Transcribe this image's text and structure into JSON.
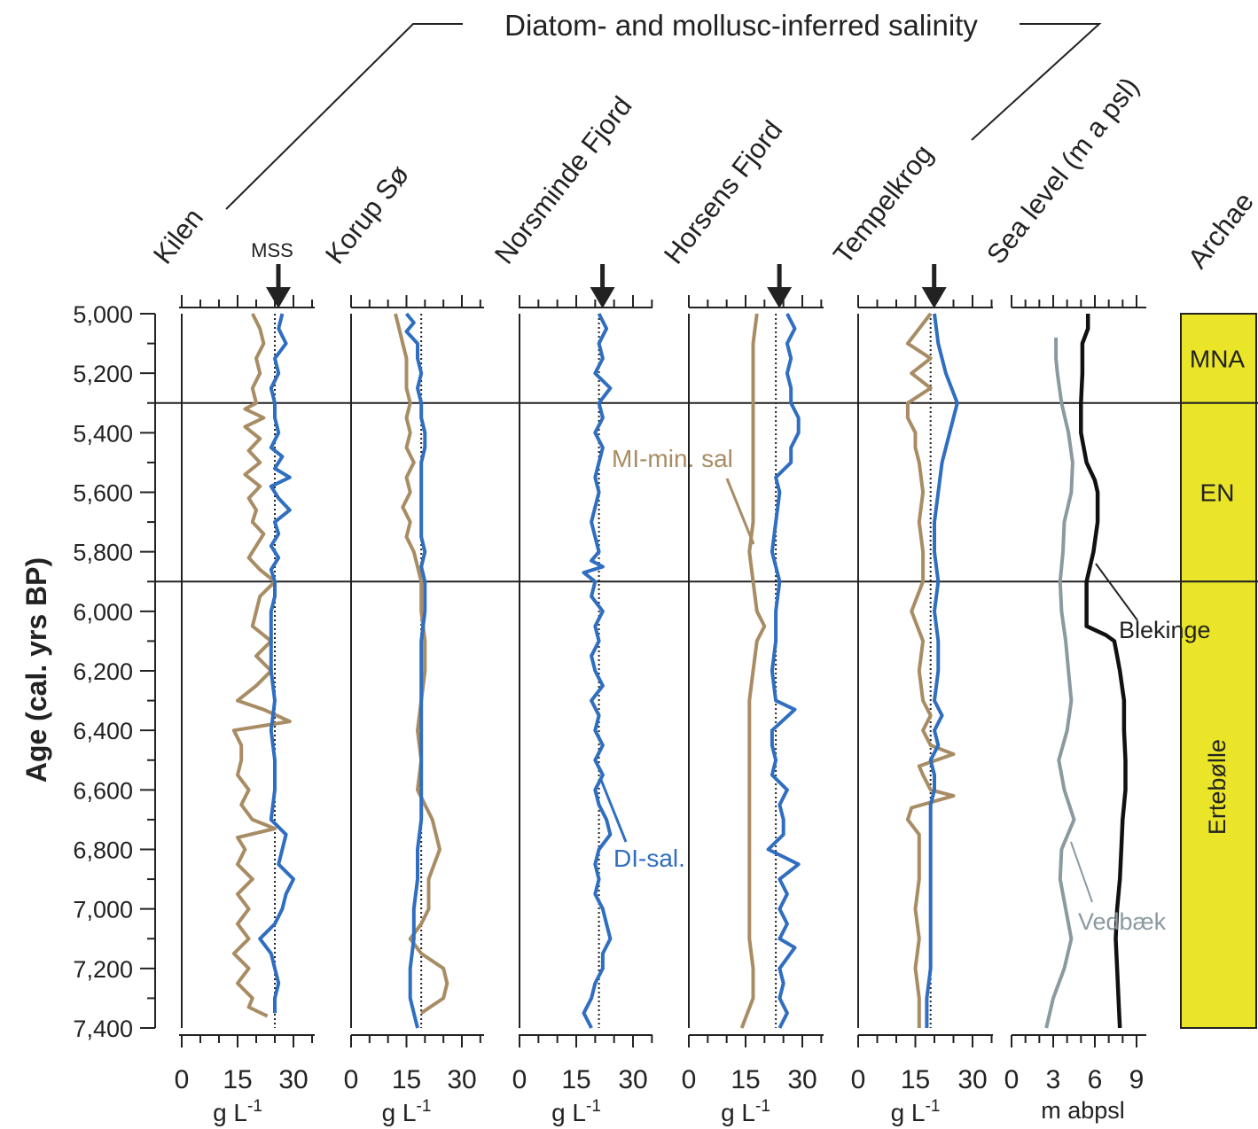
{
  "figure": {
    "header": "Diatom- and mollusc-inferred salinity",
    "y_axis_label": "Age (cal. yrs BP)",
    "y_ticks": [
      "5,000",
      "5,200",
      "5,400",
      "5,600",
      "5,800",
      "6,000",
      "6,200",
      "6,400",
      "6,600",
      "6,800",
      "7,000",
      "7,200",
      "7,400"
    ],
    "mss_label": "MSS",
    "annotation_mi": "MI-min. sal",
    "annotation_di": "DI-sal.",
    "annotation_blekinge": "Blekinge",
    "annotation_vedbaek": "Vedbæk",
    "colors": {
      "mi": "#a88c64",
      "di": "#2f6ec0",
      "blekinge": "#111111",
      "vedbaek": "#8a9aa0",
      "archaeo_fill": "#eae528"
    }
  },
  "chart_data": [
    {
      "type": "line",
      "title": "Kilen",
      "xlabel": "g L-1",
      "xlabel_sup": "-1",
      "xlabel_base": "g L",
      "xticks": [
        "0",
        "15",
        "30"
      ],
      "xlim": [
        0,
        35
      ],
      "ylim": [
        5000,
        7400
      ],
      "mss": 25,
      "series": [
        {
          "key": "mi",
          "x": [
            5000,
            5050,
            5100,
            5150,
            5200,
            5250,
            5300,
            5320,
            5350,
            5380,
            5420,
            5460,
            5500,
            5540,
            5580,
            5620,
            5660,
            5700,
            5740,
            5780,
            5820,
            5860,
            5900,
            5950,
            6000,
            6050,
            6100,
            6150,
            6200,
            6250,
            6300,
            6330,
            6370,
            6400,
            6450,
            6500,
            6550,
            6600,
            6650,
            6700,
            6730,
            6760,
            6800,
            6850,
            6900,
            6950,
            7000,
            7050,
            7100,
            7150,
            7200,
            7250,
            7300,
            7330,
            7360
          ],
          "y": [
            19,
            21,
            22,
            20,
            21,
            19,
            20,
            17,
            22,
            17,
            21,
            18,
            21,
            17,
            21,
            18,
            20,
            19,
            22,
            20,
            18,
            21,
            25,
            21,
            20,
            19,
            24,
            20,
            24,
            20,
            15,
            22,
            29,
            14,
            16,
            16,
            15,
            18,
            16,
            19,
            25,
            15,
            17,
            15,
            19,
            15,
            18,
            15,
            18,
            14,
            18,
            15,
            19,
            18,
            23
          ]
        },
        {
          "key": "di",
          "x": [
            5000,
            5050,
            5100,
            5150,
            5200,
            5250,
            5300,
            5350,
            5400,
            5450,
            5480,
            5520,
            5550,
            5580,
            5620,
            5660,
            5700,
            5740,
            5780,
            5820,
            5860,
            5900,
            5950,
            6000,
            6050,
            6100,
            6200,
            6300,
            6400,
            6500,
            6600,
            6700,
            6750,
            6800,
            6850,
            6900,
            6950,
            7000,
            7050,
            7100,
            7150,
            7200,
            7250,
            7300,
            7350
          ],
          "y": [
            27,
            26,
            28,
            25,
            26,
            24,
            25,
            25,
            26,
            24,
            27,
            25,
            29,
            24,
            26,
            29,
            25,
            26,
            24,
            26,
            24,
            25,
            25,
            24,
            24,
            24,
            24,
            25,
            24,
            25,
            25,
            24,
            28,
            27,
            26,
            30,
            28,
            27,
            25,
            21,
            24,
            25,
            26,
            25,
            25
          ]
        }
      ]
    },
    {
      "type": "line",
      "title": "Korup Sø",
      "xlabel": "g L-1",
      "xlabel_sup": "-1",
      "xlabel_base": "g L",
      "xticks": [
        "0",
        "15",
        "30"
      ],
      "xlim": [
        0,
        35
      ],
      "ylim": [
        5000,
        7400
      ],
      "mss": 19,
      "series": [
        {
          "key": "mi",
          "x": [
            5000,
            5050,
            5100,
            5150,
            5200,
            5250,
            5300,
            5350,
            5400,
            5450,
            5500,
            5550,
            5600,
            5650,
            5700,
            5750,
            5800,
            5850,
            5900,
            6000,
            6100,
            6200,
            6300,
            6400,
            6500,
            6600,
            6700,
            6800,
            6900,
            7000,
            7050,
            7100,
            7150,
            7200,
            7250,
            7300,
            7350
          ],
          "y": [
            12,
            13,
            14,
            15,
            15,
            15,
            16,
            15,
            16,
            15,
            17,
            15,
            16,
            14,
            16,
            15,
            17,
            18,
            19,
            19,
            20,
            20,
            19,
            18,
            19,
            18,
            22,
            24,
            21,
            21,
            19,
            16,
            19,
            25,
            26,
            25,
            19
          ]
        },
        {
          "key": "di",
          "x": [
            5000,
            5030,
            5060,
            5100,
            5150,
            5200,
            5250,
            5300,
            5350,
            5400,
            5450,
            5500,
            5550,
            5600,
            5650,
            5700,
            5750,
            5800,
            5850,
            5900,
            6000,
            6100,
            6200,
            6300,
            6400,
            6500,
            6600,
            6700,
            6800,
            6900,
            7000,
            7100,
            7200,
            7300,
            7350,
            7400
          ],
          "y": [
            15,
            17,
            15,
            18,
            18,
            19,
            18,
            19,
            19,
            20,
            20,
            19,
            19,
            19,
            19,
            19,
            19,
            20,
            19,
            20,
            20,
            19,
            19,
            19,
            19,
            19,
            19,
            19,
            18,
            18,
            17,
            17,
            16,
            16,
            17,
            18
          ]
        }
      ]
    },
    {
      "type": "line",
      "title": "Norsminde Fjord",
      "xlabel": "g L-1",
      "xlabel_sup": "-1",
      "xlabel_base": "g L",
      "xticks": [
        "0",
        "15",
        "30"
      ],
      "xlim": [
        0,
        35
      ],
      "ylim": [
        5000,
        7400
      ],
      "mss": 21,
      "series": [
        {
          "key": "di",
          "x": [
            5000,
            5050,
            5100,
            5150,
            5200,
            5250,
            5300,
            5350,
            5400,
            5450,
            5500,
            5550,
            5600,
            5650,
            5700,
            5750,
            5800,
            5830,
            5850,
            5870,
            5900,
            5950,
            6000,
            6050,
            6100,
            6150,
            6200,
            6250,
            6300,
            6350,
            6400,
            6450,
            6500,
            6550,
            6600,
            6650,
            6700,
            6750,
            6800,
            6850,
            6900,
            6950,
            7000,
            7050,
            7100,
            7150,
            7200,
            7250,
            7300,
            7350,
            7400
          ],
          "y": [
            21,
            23,
            21,
            22,
            20,
            24,
            21,
            22,
            20,
            22,
            21,
            20,
            21,
            20,
            19,
            20,
            21,
            19,
            22,
            17,
            20,
            19,
            22,
            20,
            21,
            19,
            20,
            22,
            19,
            21,
            20,
            22,
            20,
            22,
            20,
            21,
            23,
            24,
            21,
            20,
            21,
            20,
            22,
            23,
            24,
            22,
            22,
            20,
            19,
            17,
            19
          ]
        }
      ]
    },
    {
      "type": "line",
      "title": "Horsens Fjord",
      "xlabel": "g L-1",
      "xlabel_sup": "-1",
      "xlabel_base": "g L",
      "xticks": [
        "0",
        "15",
        "30"
      ],
      "xlim": [
        0,
        35
      ],
      "ylim": [
        5000,
        7400
      ],
      "mss": 23,
      "series": [
        {
          "key": "mi",
          "x": [
            5000,
            5100,
            5200,
            5300,
            5400,
            5500,
            5600,
            5700,
            5800,
            5900,
            6000,
            6050,
            6100,
            6200,
            6300,
            6400,
            6500,
            6600,
            6700,
            6800,
            6900,
            7000,
            7100,
            7200,
            7300,
            7400
          ],
          "y": [
            18,
            17,
            17,
            17,
            17,
            17,
            17,
            17,
            16,
            17,
            18,
            20,
            18,
            17,
            16,
            16,
            16,
            16,
            16,
            16,
            16,
            16,
            16,
            17,
            17,
            14
          ]
        },
        {
          "key": "di",
          "x": [
            5000,
            5050,
            5100,
            5150,
            5200,
            5250,
            5300,
            5350,
            5400,
            5450,
            5500,
            5550,
            5600,
            5700,
            5800,
            5900,
            6000,
            6100,
            6200,
            6300,
            6330,
            6400,
            6450,
            6500,
            6550,
            6600,
            6650,
            6700,
            6750,
            6800,
            6850,
            6900,
            6950,
            7000,
            7050,
            7100,
            7130,
            7200,
            7250,
            7300,
            7350,
            7400
          ],
          "y": [
            26,
            28,
            26,
            27,
            26,
            27,
            27,
            29,
            29,
            27,
            27,
            23,
            24,
            23,
            22,
            24,
            23,
            23,
            22,
            23,
            28,
            22,
            22,
            23,
            22,
            26,
            24,
            25,
            25,
            21,
            29,
            24,
            26,
            24,
            26,
            24,
            28,
            24,
            25,
            24,
            26,
            24
          ]
        }
      ]
    },
    {
      "type": "line",
      "title": "Tempelkrog",
      "xlabel": "g L-1",
      "xlabel_sup": "-1",
      "xlabel_base": "g L",
      "xticks": [
        "0",
        "15",
        "30"
      ],
      "xlim": [
        0,
        35
      ],
      "ylim": [
        5000,
        7400
      ],
      "mss": 19,
      "series": [
        {
          "key": "mi",
          "x": [
            5000,
            5050,
            5100,
            5150,
            5200,
            5250,
            5300,
            5350,
            5400,
            5450,
            5500,
            5600,
            5700,
            5800,
            5900,
            6000,
            6100,
            6200,
            6300,
            6350,
            6400,
            6450,
            6480,
            6520,
            6550,
            6600,
            6620,
            6660,
            6700,
            6750,
            6800,
            6900,
            7000,
            7100,
            7200,
            7300,
            7400
          ],
          "y": [
            19,
            16,
            13,
            19,
            14,
            19,
            13,
            13,
            15,
            15,
            16,
            17,
            16,
            17,
            17,
            14,
            17,
            16,
            17,
            19,
            17,
            19,
            25,
            16,
            17,
            19,
            25,
            14,
            13,
            16,
            16,
            16,
            15,
            16,
            15,
            16,
            16
          ]
        },
        {
          "key": "di",
          "x": [
            5000,
            5100,
            5200,
            5300,
            5400,
            5500,
            5600,
            5700,
            5800,
            5900,
            6000,
            6100,
            6200,
            6300,
            6350,
            6400,
            6450,
            6500,
            6550,
            6600,
            6650,
            6700,
            6800,
            6900,
            7000,
            7100,
            7200,
            7300,
            7400
          ],
          "y": [
            20,
            21,
            23,
            26,
            24,
            22,
            21,
            20,
            20,
            21,
            20,
            21,
            21,
            20,
            22,
            20,
            21,
            19,
            20,
            20,
            19,
            19,
            19,
            19,
            19,
            19,
            19,
            18,
            18
          ]
        }
      ]
    },
    {
      "type": "line",
      "title": "Sea level (m a psl)",
      "xlabel": "m abpsl",
      "xticks": [
        "0",
        "3",
        "6",
        "9"
      ],
      "xlim": [
        0,
        9
      ],
      "ylim": [
        5000,
        7400
      ],
      "series": [
        {
          "name": "Blekinge",
          "key": "blekinge",
          "x": [
            5000,
            5050,
            5100,
            5200,
            5300,
            5400,
            5500,
            5560,
            5600,
            5700,
            5800,
            5900,
            6000,
            6050,
            6080,
            6100,
            6150,
            6200,
            6300,
            6400,
            6500,
            6600,
            6700,
            6800,
            6900,
            7000,
            7100,
            7200,
            7300,
            7400
          ],
          "y": [
            5.5,
            5.5,
            5.1,
            5.1,
            5.0,
            5.0,
            5.4,
            6.0,
            6.2,
            6.2,
            5.9,
            5.4,
            5.4,
            5.4,
            6.8,
            7.4,
            7.6,
            7.8,
            8.1,
            8.1,
            8.2,
            8.2,
            8.0,
            7.9,
            7.8,
            7.6,
            7.5,
            7.6,
            7.7,
            7.8
          ]
        },
        {
          "name": "Vedbæk",
          "key": "vedbaek",
          "x": [
            5080,
            5150,
            5200,
            5300,
            5400,
            5500,
            5600,
            5700,
            5800,
            5900,
            6000,
            6100,
            6200,
            6300,
            6400,
            6500,
            6600,
            6700,
            6800,
            6900,
            7000,
            7100,
            7200,
            7300,
            7400
          ],
          "y": [
            3.2,
            3.2,
            3.3,
            3.6,
            4.1,
            4.4,
            4.3,
            3.8,
            3.7,
            3.5,
            3.6,
            3.9,
            4.1,
            4.3,
            4.0,
            3.4,
            3.8,
            4.5,
            3.6,
            3.5,
            3.9,
            4.3,
            3.8,
            3.0,
            2.5
          ]
        }
      ]
    },
    {
      "type": "table",
      "title": "Archae",
      "periods": [
        {
          "label": "MNA",
          "from": 5000,
          "to": 5300,
          "orient": "horizontal"
        },
        {
          "label": "EN",
          "from": 5300,
          "to": 5900,
          "orient": "horizontal"
        },
        {
          "label": "Ertebølle",
          "from": 5900,
          "to": 7400,
          "orient": "vertical"
        }
      ],
      "boundaries": [
        5300,
        5900
      ]
    }
  ]
}
